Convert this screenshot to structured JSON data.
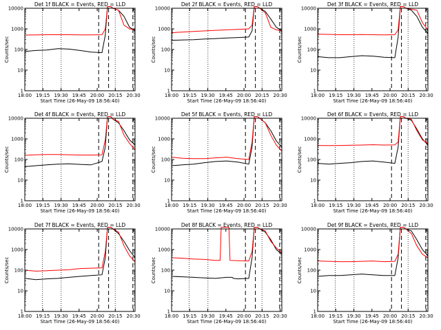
{
  "figure": {
    "xlabel": "Start Time (26-May-09 18:56:40)",
    "ylabel": "Counts/sec",
    "legend_suffix": "BLACK = Events, RED = LLD"
  },
  "chart_data": [
    {
      "type": "line",
      "title": "Det 1f BLACK = Events, RED = LLD",
      "xlabel": "Start Time (26-May-09 18:56:40)",
      "ylabel": "Counts/sec",
      "xticks": [
        "18:00",
        "19:15",
        "19:30",
        "19:45",
        "20:00",
        "20:15",
        "20:30"
      ],
      "ylog": true,
      "ylim": [
        1,
        10000
      ],
      "yticks": [
        "1",
        "10",
        "100",
        "1000",
        "10000"
      ],
      "series": [
        {
          "color": "#000000",
          "x": [
            0,
            0.1,
            0.2,
            0.3,
            0.4,
            0.5,
            0.6,
            0.7,
            0.73,
            0.75,
            0.78,
            0.8,
            0.85,
            0.9,
            0.95,
            1
          ],
          "y": [
            80,
            90,
            95,
            110,
            105,
            90,
            75,
            70,
            500,
            12000,
            12000,
            10000,
            8000,
            4000,
            1200,
            800
          ]
        },
        {
          "color": "#ff0000",
          "x": [
            0,
            0.1,
            0.2,
            0.3,
            0.4,
            0.5,
            0.6,
            0.7,
            0.73,
            0.75,
            0.78,
            0.8,
            0.85,
            0.9,
            0.95,
            1
          ],
          "y": [
            500,
            510,
            520,
            520,
            520,
            510,
            510,
            520,
            1000,
            12000,
            12000,
            10000,
            8000,
            1500,
            1000,
            900
          ]
        }
      ]
    },
    {
      "type": "line",
      "title": "Det 2f BLACK = Events, RED = LLD",
      "xlabel": "Start Time (26-May-09 18:56:40)",
      "ylabel": "Counts/sec",
      "xticks": [
        "18:00",
        "19:15",
        "19:30",
        "19:45",
        "20:00",
        "20:15",
        "20:30"
      ],
      "ylog": true,
      "ylim": [
        1,
        10000
      ],
      "yticks": [
        "1",
        "10",
        "100",
        "1000",
        "10000"
      ],
      "series": [
        {
          "color": "#000000",
          "x": [
            0,
            0.1,
            0.2,
            0.3,
            0.4,
            0.5,
            0.6,
            0.7,
            0.73,
            0.75,
            0.78,
            0.8,
            0.85,
            0.9,
            0.95,
            1
          ],
          "y": [
            280,
            290,
            300,
            320,
            340,
            360,
            380,
            400,
            800,
            12000,
            12000,
            10000,
            7000,
            3000,
            1200,
            800
          ]
        },
        {
          "color": "#ff0000",
          "x": [
            0,
            0.1,
            0.2,
            0.3,
            0.4,
            0.5,
            0.6,
            0.7,
            0.73,
            0.75,
            0.78,
            0.8,
            0.85,
            0.9,
            0.95,
            1
          ],
          "y": [
            650,
            700,
            750,
            800,
            850,
            900,
            950,
            1000,
            1500,
            12000,
            12000,
            10000,
            6000,
            1200,
            900,
            800
          ]
        }
      ]
    },
    {
      "type": "line",
      "title": "Det 3f BLACK = Events, RED = LLD",
      "xlabel": "Start Time (26-May-09 18:56:40)",
      "ylabel": "Counts/sec",
      "xticks": [
        "18:00",
        "19:15",
        "19:30",
        "19:45",
        "20:00",
        "20:15",
        "20:30"
      ],
      "ylog": true,
      "ylim": [
        1,
        10000
      ],
      "yticks": [
        "1",
        "10",
        "100",
        "1000",
        "10000"
      ],
      "series": [
        {
          "color": "#000000",
          "x": [
            0,
            0.1,
            0.2,
            0.3,
            0.4,
            0.5,
            0.6,
            0.7,
            0.73,
            0.75,
            0.78,
            0.8,
            0.85,
            0.9,
            0.95,
            1
          ],
          "y": [
            45,
            40,
            40,
            45,
            50,
            48,
            42,
            40,
            400,
            12000,
            12000,
            10000,
            8000,
            4000,
            1200,
            600
          ]
        },
        {
          "color": "#ff0000",
          "x": [
            0,
            0.1,
            0.2,
            0.3,
            0.4,
            0.5,
            0.6,
            0.7,
            0.73,
            0.75,
            0.78,
            0.8,
            0.85,
            0.9,
            0.95,
            1
          ],
          "y": [
            550,
            540,
            520,
            520,
            530,
            520,
            510,
            520,
            900,
            12000,
            12000,
            10000,
            9000,
            8000,
            2000,
            900
          ]
        }
      ]
    },
    {
      "type": "line",
      "title": "Det 4f BLACK = Events, RED = LLD",
      "xlabel": "Start Time (26-May-09 18:56:40)",
      "ylabel": "Counts/sec",
      "xticks": [
        "18:00",
        "19:15",
        "19:30",
        "19:45",
        "20:00",
        "20:15",
        "20:30"
      ],
      "ylog": true,
      "ylim": [
        1,
        10000
      ],
      "yticks": [
        "1",
        "10",
        "100",
        "1000",
        "10000"
      ],
      "series": [
        {
          "color": "#000000",
          "x": [
            0,
            0.1,
            0.2,
            0.3,
            0.4,
            0.5,
            0.6,
            0.7,
            0.73,
            0.75,
            0.78,
            0.8,
            0.85,
            0.9,
            0.95,
            1
          ],
          "y": [
            45,
            50,
            55,
            60,
            62,
            58,
            55,
            80,
            400,
            12000,
            12000,
            9000,
            6000,
            2500,
            900,
            500
          ]
        },
        {
          "color": "#ff0000",
          "x": [
            0,
            0.1,
            0.2,
            0.3,
            0.4,
            0.5,
            0.6,
            0.7,
            0.73,
            0.75,
            0.78,
            0.8,
            0.85,
            0.9,
            0.95,
            1
          ],
          "y": [
            160,
            170,
            175,
            175,
            170,
            165,
            165,
            170,
            900,
            12000,
            12000,
            9000,
            7000,
            1500,
            600,
            300
          ]
        }
      ]
    },
    {
      "type": "line",
      "title": "Det 5f BLACK = Events, RED = LLD",
      "xlabel": "Start Time (26-May-09 18:56:40)",
      "ylabel": "Counts/sec",
      "xticks": [
        "18:00",
        "19:15",
        "19:30",
        "19:45",
        "20:00",
        "20:15",
        "20:30"
      ],
      "ylog": true,
      "ylim": [
        1,
        10000
      ],
      "yticks": [
        "1",
        "10",
        "100",
        "1000",
        "10000"
      ],
      "series": [
        {
          "color": "#000000",
          "x": [
            0,
            0.1,
            0.2,
            0.3,
            0.4,
            0.5,
            0.6,
            0.7,
            0.73,
            0.75,
            0.78,
            0.8,
            0.85,
            0.9,
            0.95,
            1
          ],
          "y": [
            50,
            55,
            60,
            70,
            80,
            85,
            75,
            60,
            400,
            12000,
            12000,
            10000,
            6000,
            2500,
            800,
            400
          ]
        },
        {
          "color": "#ff0000",
          "x": [
            0,
            0.1,
            0.2,
            0.3,
            0.4,
            0.5,
            0.6,
            0.7,
            0.73,
            0.75,
            0.78,
            0.8,
            0.85,
            0.9,
            0.95,
            1
          ],
          "y": [
            130,
            115,
            110,
            110,
            120,
            130,
            110,
            100,
            700,
            12000,
            12000,
            10000,
            6000,
            1500,
            500,
            250
          ]
        }
      ]
    },
    {
      "type": "line",
      "title": "Det 6f BLACK = Events, RED = LLD",
      "xlabel": "Start Time (26-May-09 18:56:40)",
      "ylabel": "Counts/sec",
      "xticks": [
        "18:00",
        "19:15",
        "19:30",
        "19:45",
        "20:00",
        "20:15",
        "20:30"
      ],
      "ylog": true,
      "ylim": [
        1,
        10000
      ],
      "yticks": [
        "1",
        "10",
        "100",
        "1000",
        "10000"
      ],
      "series": [
        {
          "color": "#000000",
          "x": [
            0,
            0.1,
            0.2,
            0.3,
            0.4,
            0.5,
            0.6,
            0.7,
            0.73,
            0.75,
            0.78,
            0.8,
            0.85,
            0.9,
            0.95,
            1
          ],
          "y": [
            65,
            60,
            65,
            70,
            80,
            85,
            75,
            65,
            400,
            12000,
            12000,
            10000,
            8000,
            3000,
            1000,
            500
          ]
        },
        {
          "color": "#ff0000",
          "x": [
            0,
            0.1,
            0.2,
            0.3,
            0.4,
            0.5,
            0.6,
            0.7,
            0.73,
            0.75,
            0.78,
            0.8,
            0.85,
            0.9,
            0.95,
            1
          ],
          "y": [
            480,
            470,
            480,
            490,
            500,
            520,
            500,
            510,
            700,
            12000,
            12000,
            10000,
            9000,
            2500,
            900,
            600
          ]
        }
      ]
    },
    {
      "type": "line",
      "title": "Det 7f BLACK = Events, RED = LLD",
      "xlabel": "Start Time (26-May-09 18:56:40)",
      "ylabel": "Counts/sec",
      "xticks": [
        "18:00",
        "19:15",
        "19:30",
        "19:45",
        "20:00",
        "20:15",
        "20:30"
      ],
      "ylog": true,
      "ylim": [
        1,
        10000
      ],
      "yticks": [
        "1",
        "10",
        "100",
        "1000",
        "10000"
      ],
      "series": [
        {
          "color": "#000000",
          "x": [
            0,
            0.1,
            0.2,
            0.3,
            0.4,
            0.5,
            0.6,
            0.7,
            0.73,
            0.75,
            0.78,
            0.8,
            0.85,
            0.9,
            0.95,
            1
          ],
          "y": [
            40,
            35,
            38,
            40,
            45,
            50,
            55,
            60,
            400,
            12000,
            12000,
            10000,
            6000,
            2500,
            900,
            400
          ]
        },
        {
          "color": "#ff0000",
          "x": [
            0,
            0.1,
            0.2,
            0.3,
            0.4,
            0.5,
            0.6,
            0.7,
            0.73,
            0.75,
            0.78,
            0.8,
            0.85,
            0.9,
            0.95,
            1
          ],
          "y": [
            100,
            90,
            95,
            100,
            105,
            120,
            125,
            130,
            800,
            12000,
            12000,
            10000,
            7000,
            1500,
            500,
            250
          ]
        }
      ]
    },
    {
      "type": "line",
      "title": "Det 8f BLACK = Events, RED = LLD",
      "xlabel": "Start Time (26-May-09 18:56:40)",
      "ylabel": "Counts/sec",
      "xticks": [
        "18:00",
        "19:15",
        "19:30",
        "19:45",
        "20:00",
        "20:15",
        "20:30"
      ],
      "ylog": true,
      "ylim": [
        1,
        10000
      ],
      "yticks": [
        "1",
        "10",
        "100",
        "1000",
        "10000"
      ],
      "series": [
        {
          "color": "#000000",
          "x": [
            0,
            0.1,
            0.2,
            0.3,
            0.4,
            0.5,
            0.55,
            0.56,
            0.6,
            0.7,
            0.73,
            0.75,
            0.78,
            0.8,
            0.85,
            0.9,
            0.95,
            1
          ],
          "y": [
            50,
            48,
            45,
            42,
            40,
            45,
            45,
            40,
            38,
            40,
            400,
            12000,
            12000,
            10000,
            7000,
            3000,
            1000,
            600
          ]
        },
        {
          "color": "#ff0000",
          "x": [
            0,
            0.1,
            0.2,
            0.3,
            0.4,
            0.44,
            0.45,
            0.52,
            0.53,
            0.6,
            0.7,
            0.73,
            0.75,
            0.78,
            0.8,
            0.85,
            0.9,
            0.95,
            1
          ],
          "y": [
            400,
            380,
            350,
            330,
            300,
            300,
            12000,
            12000,
            300,
            290,
            280,
            800,
            12000,
            12000,
            10000,
            8000,
            2500,
            1200,
            700
          ]
        }
      ]
    },
    {
      "type": "line",
      "title": "Det 9f BLACK = Events, RED = LLD",
      "xlabel": "Start Time (26-May-09 18:56:40)",
      "ylabel": "Counts/sec",
      "xticks": [
        "18:00",
        "19:15",
        "19:30",
        "19:45",
        "20:00",
        "20:15",
        "20:30"
      ],
      "ylog": true,
      "ylim": [
        1,
        10000
      ],
      "yticks": [
        "1",
        "10",
        "100",
        "1000",
        "10000"
      ],
      "series": [
        {
          "color": "#000000",
          "x": [
            0,
            0.1,
            0.2,
            0.3,
            0.4,
            0.5,
            0.6,
            0.7,
            0.73,
            0.75,
            0.78,
            0.8,
            0.85,
            0.9,
            0.95,
            1
          ],
          "y": [
            50,
            55,
            55,
            60,
            65,
            60,
            55,
            55,
            400,
            12000,
            12000,
            10000,
            8000,
            3000,
            1000,
            500
          ]
        },
        {
          "color": "#ff0000",
          "x": [
            0,
            0.1,
            0.2,
            0.3,
            0.4,
            0.5,
            0.6,
            0.7,
            0.73,
            0.75,
            0.78,
            0.8,
            0.85,
            0.9,
            0.95,
            1
          ],
          "y": [
            280,
            270,
            260,
            260,
            270,
            280,
            260,
            270,
            600,
            12000,
            12000,
            10000,
            6000,
            1500,
            600,
            400
          ]
        }
      ]
    }
  ]
}
